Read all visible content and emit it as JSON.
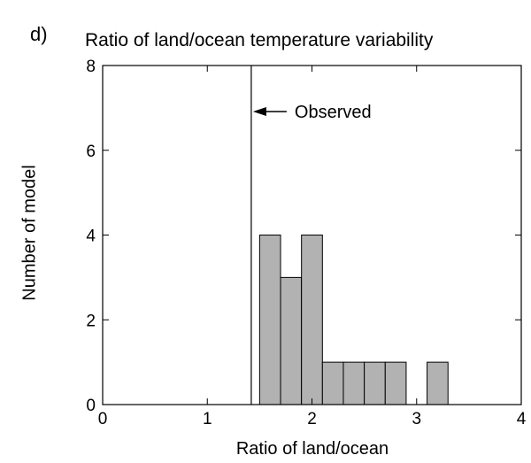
{
  "panel_label": "d)",
  "chart_data": {
    "type": "bar",
    "title": "Ratio of land/ocean temperature variability",
    "xlabel": "Ratio of land/ocean",
    "ylabel": "Number of model",
    "xlim": [
      0,
      4
    ],
    "ylim": [
      0,
      8
    ],
    "xticks": [
      0,
      1,
      2,
      3,
      4
    ],
    "yticks": [
      0,
      2,
      4,
      6,
      8
    ],
    "bin_width": 0.2,
    "bins": [
      {
        "start": 1.5,
        "count": 4
      },
      {
        "start": 1.7,
        "count": 3
      },
      {
        "start": 1.9,
        "count": 4
      },
      {
        "start": 2.1,
        "count": 1
      },
      {
        "start": 2.3,
        "count": 1
      },
      {
        "start": 2.5,
        "count": 1
      },
      {
        "start": 2.7,
        "count": 1
      },
      {
        "start": 3.1,
        "count": 1
      }
    ],
    "observed": {
      "x": 1.42,
      "label": "Observed"
    },
    "bar_color": "#b2b2b2",
    "grid": false
  }
}
